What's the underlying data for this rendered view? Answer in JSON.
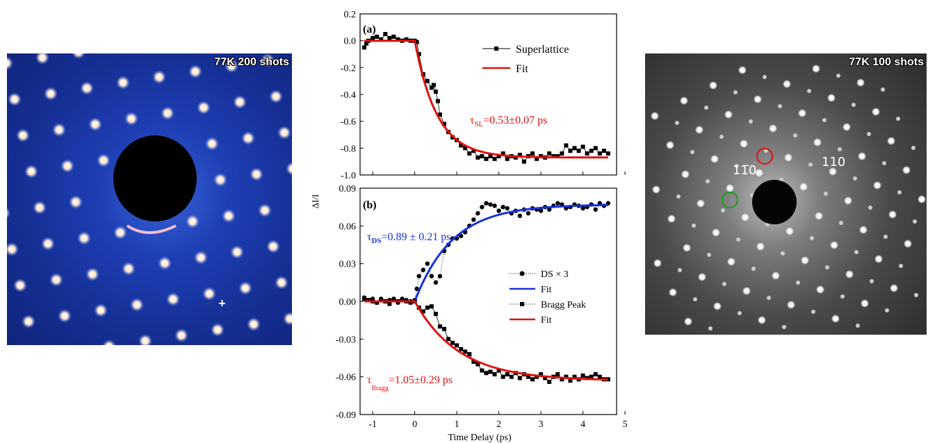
{
  "left_image": {
    "label": "77K 200 shots"
  },
  "right_image": {
    "label": "77K 100 shots",
    "labels": [
      "11̅0",
      "110"
    ]
  },
  "shared_axis": {
    "ylabel": "ΔI/I",
    "xlabel": "Time Delay  (ps)",
    "xticks": [
      "-1",
      "0",
      "1",
      "2",
      "3",
      "4",
      "5"
    ]
  },
  "colors": {
    "black": "#000000",
    "red": "#e01010",
    "blue": "#1530e0"
  },
  "chart_data": [
    {
      "type": "line",
      "panel": "(a)",
      "xlim": [
        -1.3,
        4.8
      ],
      "ylim": [
        -1.0,
        0.2
      ],
      "yticks": [
        "0.2",
        "0.0",
        "-0.2",
        "-0.4",
        "-0.6",
        "-0.8",
        "-1.0"
      ],
      "legend": [
        "Superlattice",
        "Fit"
      ],
      "annotation": {
        "symbol": "τ",
        "sub": "SL",
        "text": "=0.53±0.07 ps"
      },
      "series": [
        {
          "name": "Superlattice",
          "style": "square-dotted",
          "x": [
            -1.2,
            -1.15,
            -1.1,
            -1.0,
            -0.9,
            -0.8,
            -0.7,
            -0.6,
            -0.5,
            -0.4,
            -0.3,
            -0.2,
            -0.1,
            0.0,
            0.05,
            0.1,
            0.2,
            0.3,
            0.4,
            0.45,
            0.5,
            0.55,
            0.6,
            0.7,
            0.8,
            0.9,
            1.0,
            1.1,
            1.2,
            1.3,
            1.4,
            1.5,
            1.6,
            1.7,
            1.8,
            1.9,
            2.0,
            2.1,
            2.2,
            2.3,
            2.4,
            2.5,
            2.6,
            2.7,
            2.8,
            2.9,
            3.0,
            3.1,
            3.2,
            3.3,
            3.4,
            3.5,
            3.6,
            3.7,
            3.8,
            3.9,
            4.0,
            4.1,
            4.2,
            4.3,
            4.4,
            4.5,
            4.6
          ],
          "y": [
            -0.05,
            -0.02,
            0.0,
            0.02,
            0.03,
            0.01,
            0.05,
            0.02,
            0.03,
            0.01,
            0.0,
            0.01,
            0.0,
            0.0,
            -0.01,
            -0.1,
            -0.25,
            -0.3,
            -0.35,
            -0.33,
            -0.38,
            -0.45,
            -0.55,
            -0.62,
            -0.68,
            -0.72,
            -0.74,
            -0.78,
            -0.8,
            -0.84,
            -0.82,
            -0.87,
            -0.86,
            -0.88,
            -0.86,
            -0.88,
            -0.86,
            -0.84,
            -0.88,
            -0.86,
            -0.87,
            -0.85,
            -0.9,
            -0.86,
            -0.84,
            -0.88,
            -0.86,
            -0.87,
            -0.84,
            -0.86,
            -0.86,
            -0.84,
            -0.78,
            -0.82,
            -0.8,
            -0.82,
            -0.79,
            -0.84,
            -0.82,
            -0.8,
            -0.84,
            -0.82,
            -0.84
          ]
        },
        {
          "name": "Fit",
          "style": "red-line",
          "t0": 0.0,
          "tau": 0.53,
          "amp": -0.87,
          "base": 0.0,
          "xmin": -1.2,
          "xmax": 4.6
        }
      ]
    },
    {
      "type": "line",
      "panel": "(b)",
      "xlim": [
        -1.3,
        4.8
      ],
      "ylim": [
        -0.09,
        0.09
      ],
      "yticks": [
        "0.09",
        "0.06",
        "0.03",
        "0.00",
        "-0.03",
        "-0.06",
        "-0.09"
      ],
      "legend": [
        "DS × 3",
        "Fit",
        "Bragg Peak",
        "Fit"
      ],
      "annotations": [
        {
          "symbol": "τ",
          "sub": "DS",
          "text": "=0.89 ± 0.21 ps",
          "color": "blue"
        },
        {
          "symbol": "τ",
          "sub": "Bragg",
          "text": "=1.05±0.29 ps",
          "color": "red"
        }
      ],
      "series": [
        {
          "name": "DS × 3",
          "style": "circle-dotted",
          "x": [
            -1.2,
            -1.1,
            -1.0,
            -0.9,
            -0.8,
            -0.7,
            -0.6,
            -0.5,
            -0.4,
            -0.3,
            -0.2,
            -0.1,
            0.0,
            0.05,
            0.1,
            0.2,
            0.3,
            0.4,
            0.5,
            0.6,
            0.7,
            0.8,
            0.9,
            1.0,
            1.1,
            1.2,
            1.3,
            1.4,
            1.5,
            1.6,
            1.7,
            1.8,
            1.9,
            2.0,
            2.1,
            2.2,
            2.3,
            2.4,
            2.5,
            2.6,
            2.7,
            2.8,
            2.9,
            3.0,
            3.1,
            3.2,
            3.3,
            3.4,
            3.5,
            3.6,
            3.7,
            3.8,
            3.9,
            4.0,
            4.1,
            4.2,
            4.3,
            4.4,
            4.5,
            4.6
          ],
          "y": [
            0.003,
            0.001,
            0.002,
            -0.001,
            0.002,
            0.0,
            0.001,
            0.002,
            -0.001,
            0.002,
            0.001,
            0.0,
            0.001,
            0.01,
            0.02,
            0.025,
            0.03,
            0.02,
            0.015,
            0.02,
            0.04,
            0.045,
            0.05,
            0.05,
            0.052,
            0.055,
            0.06,
            0.065,
            0.07,
            0.075,
            0.078,
            0.077,
            0.076,
            0.072,
            0.075,
            0.074,
            0.07,
            0.072,
            0.068,
            0.073,
            0.07,
            0.074,
            0.073,
            0.072,
            0.075,
            0.073,
            0.076,
            0.078,
            0.077,
            0.074,
            0.075,
            0.077,
            0.076,
            0.074,
            0.075,
            0.077,
            0.073,
            0.078,
            0.076,
            0.078
          ]
        },
        {
          "name": "Fit",
          "style": "blue-line",
          "t0": 0.0,
          "tau": 0.89,
          "amp": 0.077,
          "base": 0.0,
          "xmin": -1.2,
          "xmax": 4.6
        },
        {
          "name": "Bragg Peak",
          "style": "square-dotted",
          "x": [
            -1.2,
            -1.1,
            -1.0,
            -0.9,
            -0.8,
            -0.7,
            -0.6,
            -0.5,
            -0.4,
            -0.3,
            -0.2,
            -0.1,
            0.0,
            0.1,
            0.2,
            0.3,
            0.4,
            0.5,
            0.6,
            0.7,
            0.8,
            0.9,
            1.0,
            1.1,
            1.2,
            1.3,
            1.4,
            1.5,
            1.6,
            1.7,
            1.8,
            1.9,
            2.0,
            2.1,
            2.2,
            2.3,
            2.4,
            2.5,
            2.6,
            2.7,
            2.8,
            2.9,
            3.0,
            3.1,
            3.2,
            3.3,
            3.4,
            3.5,
            3.6,
            3.7,
            3.8,
            3.9,
            4.0,
            4.1,
            4.2,
            4.3,
            4.4,
            4.5,
            4.6
          ],
          "y": [
            0.002,
            0.001,
            0.0,
            -0.001,
            0.001,
            0.0,
            -0.002,
            0.001,
            0.0,
            0.001,
            0.0,
            -0.001,
            0.0,
            -0.005,
            -0.008,
            -0.005,
            -0.004,
            -0.01,
            -0.02,
            -0.022,
            -0.03,
            -0.033,
            -0.035,
            -0.038,
            -0.04,
            -0.042,
            -0.048,
            -0.05,
            -0.055,
            -0.057,
            -0.056,
            -0.058,
            -0.055,
            -0.06,
            -0.058,
            -0.06,
            -0.057,
            -0.061,
            -0.058,
            -0.06,
            -0.062,
            -0.06,
            -0.058,
            -0.061,
            -0.064,
            -0.06,
            -0.058,
            -0.062,
            -0.06,
            -0.063,
            -0.06,
            -0.062,
            -0.059,
            -0.061,
            -0.06,
            -0.058,
            -0.06,
            -0.062,
            -0.062
          ]
        },
        {
          "name": "Fit",
          "style": "red-line",
          "t0": 0.0,
          "tau": 1.05,
          "amp": -0.063,
          "base": 0.0,
          "xmin": -1.2,
          "xmax": 4.6
        }
      ]
    }
  ]
}
